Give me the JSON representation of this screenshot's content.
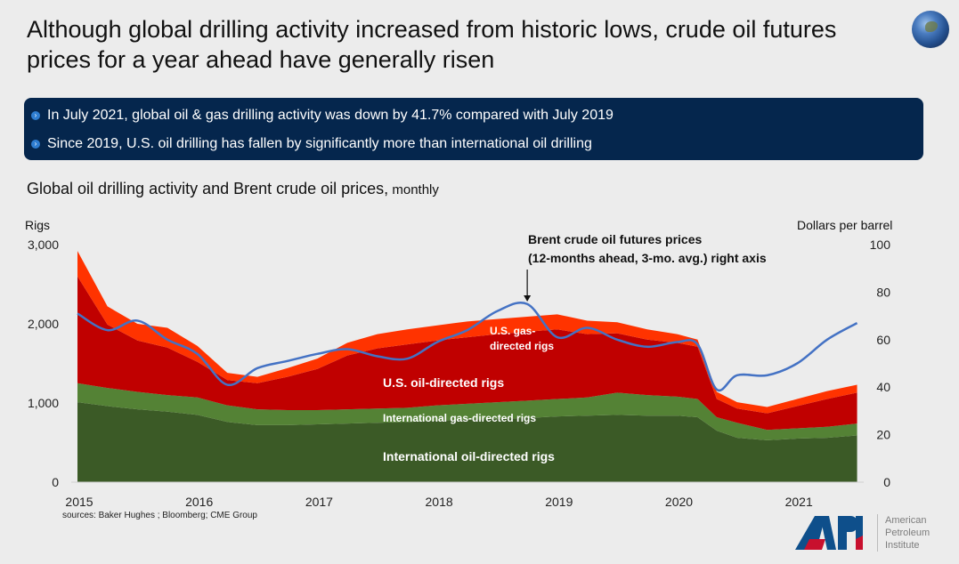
{
  "header": {
    "title": "Although global drilling activity increased from historic lows, crude oil futures prices for a year ahead have generally risen",
    "globe_icon": "globe-icon"
  },
  "banner": {
    "bullets": [
      "In July 2021, global oil & gas drilling activity was down by 41.7% compared with July 2019",
      "Since 2019, U.S. oil drilling has fallen by significantly more than international oil drilling"
    ]
  },
  "chart_heading": {
    "main": "Global oil drilling activity and Brent crude oil prices,",
    "suffix": " monthly"
  },
  "footer": {
    "source": "sources: Baker Hughes ; Bloomberg; CME Group",
    "logo_text": [
      "American",
      "Petroleum",
      "Institute"
    ],
    "logo_mark": "API"
  },
  "chart_data": {
    "type": "area",
    "title": "Global oil drilling activity and Brent crude oil prices, monthly",
    "ylabel": "Rigs",
    "y2label": "Dollars per barrel",
    "ylim": [
      0,
      3000
    ],
    "y2lim": [
      0,
      100
    ],
    "yticks": [
      "0",
      "1,000",
      "2,000",
      "3,000"
    ],
    "y2ticks": [
      "0",
      "20",
      "40",
      "60",
      "80",
      "100"
    ],
    "xticks": [
      "2015",
      "2016",
      "2017",
      "2018",
      "2019",
      "2020",
      "2021"
    ],
    "x": [
      2015.0,
      2015.25,
      2015.5,
      2015.75,
      2016.0,
      2016.25,
      2016.5,
      2016.75,
      2017.0,
      2017.25,
      2017.5,
      2017.75,
      2018.0,
      2018.25,
      2018.5,
      2018.75,
      2019.0,
      2019.25,
      2019.5,
      2019.75,
      2020.0,
      2020.17,
      2020.33,
      2020.5,
      2020.75,
      2021.0,
      2021.25,
      2021.5
    ],
    "series": [
      {
        "name": "International oil-directed rigs",
        "color": "#3b5a26",
        "values": [
          1010,
          960,
          920,
          890,
          850,
          760,
          720,
          720,
          730,
          740,
          750,
          760,
          780,
          790,
          800,
          810,
          830,
          840,
          850,
          840,
          840,
          820,
          650,
          560,
          530,
          550,
          560,
          590
        ]
      },
      {
        "name": "International gas-directed rigs",
        "color": "#548235",
        "values": [
          240,
          230,
          220,
          210,
          220,
          210,
          200,
          190,
          180,
          180,
          180,
          180,
          190,
          200,
          210,
          220,
          220,
          230,
          280,
          260,
          240,
          230,
          170,
          190,
          130,
          130,
          140,
          150
        ]
      },
      {
        "name": "U.S. oil-directed rigs",
        "color": "#c00000",
        "values": [
          1350,
          800,
          650,
          600,
          450,
          320,
          330,
          420,
          520,
          680,
          760,
          800,
          820,
          840,
          860,
          870,
          880,
          800,
          750,
          700,
          680,
          660,
          230,
          180,
          210,
          280,
          350,
          390
        ]
      },
      {
        "name": "U.S. gas-directed rigs",
        "color": "#ff3300",
        "values": [
          320,
          230,
          210,
          250,
          200,
          90,
          80,
          110,
          130,
          160,
          180,
          190,
          190,
          200,
          190,
          190,
          190,
          170,
          140,
          130,
          110,
          90,
          90,
          80,
          80,
          90,
          100,
          100
        ]
      }
    ],
    "line": {
      "name": "Brent crude oil futures prices (12-months ahead, 3-mo. avg.) right axis",
      "axis": "right",
      "color": "#4472c4",
      "values": [
        71,
        64,
        68,
        60,
        54,
        41,
        48,
        51,
        54,
        56,
        53,
        52,
        59,
        64,
        72,
        75,
        61,
        65,
        60,
        57,
        59,
        58,
        39,
        45,
        45,
        50,
        60,
        67
      ]
    },
    "annotations": [
      {
        "text": "Brent crude oil futures prices",
        "text2": "(12-months ahead, 3-mo. avg.) right axis",
        "arrow_to": 2018.75
      },
      {
        "text": "U.S. gas-",
        "text2": "directed rigs"
      },
      {
        "text": "U.S. oil-directed rigs"
      },
      {
        "text": "International gas-directed rigs"
      },
      {
        "text": "International oil-directed rigs"
      }
    ]
  }
}
